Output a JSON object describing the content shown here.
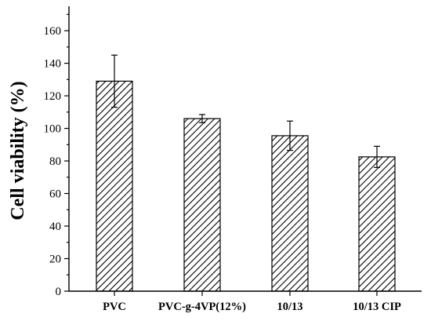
{
  "chart_data": {
    "type": "bar",
    "title": "",
    "xlabel": "",
    "ylabel": "Cell viability (%)",
    "categories": [
      "PVC",
      "PVC-g-4VP(12%)",
      "10/13",
      "10/13 CIP"
    ],
    "values": [
      129,
      106,
      95.5,
      82.5
    ],
    "errors": [
      16,
      2.5,
      9,
      6.5
    ],
    "ylim": [
      0,
      175
    ],
    "yticks": [
      0,
      20,
      40,
      60,
      80,
      100,
      120,
      140,
      160
    ],
    "ytick_labels": [
      "0",
      "20",
      "40",
      "60",
      "80",
      "100",
      "120",
      "140",
      "160"
    ],
    "bar_fill": "diagonal hatch",
    "grid": false,
    "legend": "none"
  }
}
